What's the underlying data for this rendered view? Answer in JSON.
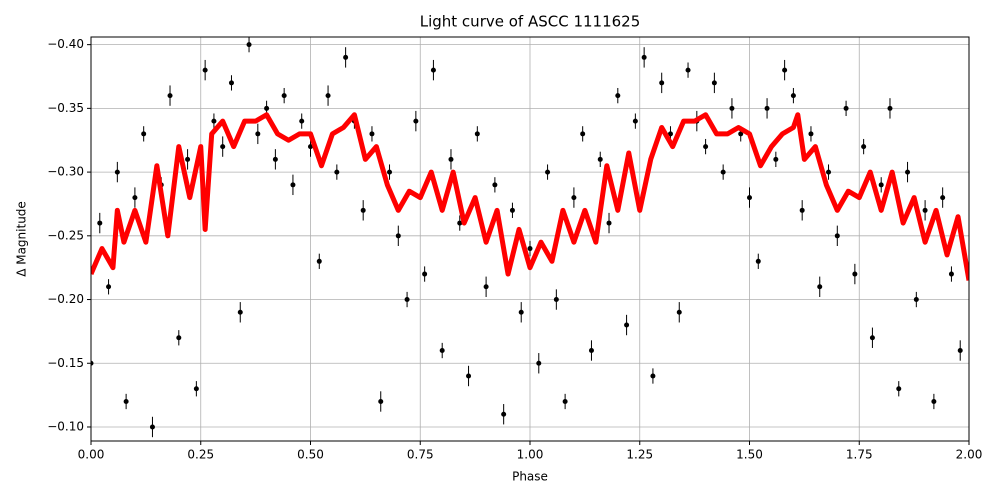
{
  "chart_data": {
    "type": "scatter",
    "title": "Light curve of ASCC 1111625",
    "xlabel": "Phase",
    "ylabel": "Δ Magnitude",
    "xlim": [
      0,
      2
    ],
    "ylim": [
      -0.089,
      -0.406
    ],
    "xticks": [
      {
        "value": 0,
        "label": "0.00"
      },
      {
        "value": 0.25,
        "label": "0.25"
      },
      {
        "value": 0.5,
        "label": "0.50"
      },
      {
        "value": 0.75,
        "label": "0.75"
      },
      {
        "value": 1,
        "label": "1.00"
      },
      {
        "value": 1.25,
        "label": "1.25"
      },
      {
        "value": 1.5,
        "label": "1.50"
      },
      {
        "value": 1.75,
        "label": "1.75"
      },
      {
        "value": 2,
        "label": "2.00"
      }
    ],
    "yticks": [
      {
        "value": -0.1,
        "label": "−0.10"
      },
      {
        "value": -0.15,
        "label": "−0.15"
      },
      {
        "value": -0.2,
        "label": "−0.20"
      },
      {
        "value": -0.25,
        "label": "−0.25"
      },
      {
        "value": -0.3,
        "label": "−0.30"
      },
      {
        "value": -0.35,
        "label": "−0.35"
      },
      {
        "value": -0.4,
        "label": "−0.40"
      }
    ],
    "grid": true,
    "series": [
      {
        "type": "errorbar",
        "color": "#000000",
        "x": [
          0,
          0.02,
          0.04,
          0.06,
          0.08,
          0.1,
          0.12,
          0.14,
          0.16,
          0.18,
          0.2,
          0.22,
          0.24,
          0.26,
          0.28,
          0.3,
          0.32,
          0.34,
          0.36,
          0.38,
          0.4,
          0.42,
          0.44,
          0.46,
          0.48,
          0.5,
          0.52,
          0.54,
          0.56,
          0.58,
          0.6,
          0.62,
          0.64,
          0.66,
          0.68,
          0.7,
          0.72,
          0.74,
          0.76,
          0.78,
          0.8,
          0.82,
          0.84,
          0.86,
          0.88,
          0.9,
          0.92,
          0.94,
          0.96,
          0.98,
          1,
          1.02,
          1.04,
          1.06,
          1.08,
          1.1,
          1.12,
          1.14,
          1.16,
          1.18,
          1.2,
          1.22,
          1.24,
          1.26,
          1.28,
          1.3,
          1.32,
          1.34,
          1.36,
          1.38,
          1.4,
          1.42,
          1.44,
          1.46,
          1.48,
          1.5,
          1.52,
          1.54,
          1.56,
          1.58,
          1.6,
          1.62,
          1.64,
          1.66,
          1.68,
          1.7,
          1.72,
          1.74,
          1.76,
          1.78,
          1.8,
          1.82,
          1.84,
          1.86,
          1.88,
          1.9,
          1.92,
          1.94,
          1.96,
          1.98
        ],
        "values": [
          -0.15,
          -0.26,
          -0.21,
          -0.3,
          -0.12,
          -0.28,
          -0.33,
          -0.1,
          -0.29,
          -0.36,
          -0.17,
          -0.31,
          -0.13,
          -0.38,
          -0.34,
          -0.32,
          -0.37,
          -0.19,
          -0.4,
          -0.33,
          -0.35,
          -0.31,
          -0.36,
          -0.29,
          -0.34,
          -0.32,
          -0.23,
          -0.36,
          -0.3,
          -0.39,
          -0.34,
          -0.27,
          -0.33,
          -0.12,
          -0.3,
          -0.25,
          -0.2,
          -0.34,
          -0.22,
          -0.38,
          -0.16,
          -0.31,
          -0.26,
          -0.14,
          -0.33,
          -0.21,
          -0.29,
          -0.11,
          -0.27,
          -0.19,
          -0.24,
          -0.15,
          -0.3,
          -0.2,
          -0.12,
          -0.28,
          -0.33,
          -0.16,
          -0.31,
          -0.26,
          -0.36,
          -0.18,
          -0.34,
          -0.39,
          -0.14,
          -0.37,
          -0.33,
          -0.19,
          -0.38,
          -0.34,
          -0.32,
          -0.37,
          -0.3,
          -0.35,
          -0.33,
          -0.28,
          -0.23,
          -0.35,
          -0.31,
          -0.38,
          -0.36,
          -0.27,
          -0.33,
          -0.21,
          -0.3,
          -0.25,
          -0.35,
          -0.22,
          -0.32,
          -0.17,
          -0.29,
          -0.35,
          -0.13,
          -0.3,
          -0.2,
          -0.27,
          -0.12,
          -0.28,
          -0.22,
          -0.16
        ],
        "errors": [
          0.006,
          0.008,
          0.006,
          0.008,
          0.006,
          0.008,
          0.006,
          0.008,
          0.006,
          0.008,
          0.006,
          0.008,
          0.006,
          0.008,
          0.006,
          0.008,
          0.006,
          0.008,
          0.006,
          0.008,
          0.006,
          0.008,
          0.006,
          0.008,
          0.006,
          0.008,
          0.006,
          0.008,
          0.006,
          0.008,
          0.006,
          0.008,
          0.006,
          0.008,
          0.006,
          0.008,
          0.006,
          0.008,
          0.006,
          0.008,
          0.006,
          0.008,
          0.006,
          0.008,
          0.006,
          0.008,
          0.006,
          0.008,
          0.006,
          0.008,
          0.006,
          0.008,
          0.006,
          0.008,
          0.006,
          0.008,
          0.006,
          0.008,
          0.006,
          0.008,
          0.006,
          0.008,
          0.006,
          0.008,
          0.006,
          0.008,
          0.006,
          0.008,
          0.006,
          0.008,
          0.006,
          0.008,
          0.006,
          0.008,
          0.006,
          0.008,
          0.006,
          0.008,
          0.006,
          0.008,
          0.006,
          0.008,
          0.006,
          0.008,
          0.006,
          0.008,
          0.006,
          0.008,
          0.006,
          0.008,
          0.006,
          0.008,
          0.006,
          0.008,
          0.006,
          0.008,
          0.006,
          0.008,
          0.006,
          0.008
        ]
      },
      {
        "type": "line",
        "color": "#ff0000",
        "x": [
          0,
          0.025,
          0.05,
          0.06,
          0.075,
          0.1,
          0.125,
          0.15,
          0.175,
          0.2,
          0.225,
          0.25,
          0.26,
          0.275,
          0.3,
          0.325,
          0.35,
          0.375,
          0.4,
          0.425,
          0.45,
          0.475,
          0.5,
          0.525,
          0.55,
          0.575,
          0.6,
          0.625,
          0.65,
          0.675,
          0.7,
          0.725,
          0.75,
          0.775,
          0.8,
          0.825,
          0.85,
          0.875,
          0.9,
          0.925,
          0.95,
          0.975,
          1,
          1.025,
          1.05,
          1.075,
          1.1,
          1.125,
          1.15,
          1.175,
          1.2,
          1.225,
          1.25,
          1.275,
          1.3,
          1.325,
          1.35,
          1.375,
          1.4,
          1.425,
          1.45,
          1.475,
          1.5,
          1.525,
          1.55,
          1.575,
          1.6,
          1.61,
          1.625,
          1.65,
          1.675,
          1.7,
          1.725,
          1.75,
          1.775,
          1.8,
          1.825,
          1.85,
          1.875,
          1.9,
          1.925,
          1.95,
          1.975,
          2
        ],
        "values": [
          -0.22,
          -0.24,
          -0.225,
          -0.27,
          -0.245,
          -0.27,
          -0.245,
          -0.305,
          -0.25,
          -0.32,
          -0.28,
          -0.32,
          -0.255,
          -0.33,
          -0.34,
          -0.32,
          -0.34,
          -0.34,
          -0.345,
          -0.33,
          -0.325,
          -0.33,
          -0.33,
          -0.305,
          -0.33,
          -0.335,
          -0.345,
          -0.31,
          -0.32,
          -0.29,
          -0.27,
          -0.285,
          -0.28,
          -0.3,
          -0.27,
          -0.3,
          -0.26,
          -0.28,
          -0.245,
          -0.27,
          -0.22,
          -0.255,
          -0.225,
          -0.245,
          -0.23,
          -0.27,
          -0.245,
          -0.27,
          -0.245,
          -0.305,
          -0.27,
          -0.315,
          -0.27,
          -0.31,
          -0.335,
          -0.32,
          -0.34,
          -0.34,
          -0.345,
          -0.33,
          -0.33,
          -0.335,
          -0.33,
          -0.305,
          -0.32,
          -0.33,
          -0.335,
          -0.345,
          -0.31,
          -0.32,
          -0.29,
          -0.27,
          -0.285,
          -0.28,
          -0.3,
          -0.27,
          -0.3,
          -0.26,
          -0.28,
          -0.245,
          -0.27,
          -0.235,
          -0.265,
          -0.215
        ]
      }
    ]
  }
}
